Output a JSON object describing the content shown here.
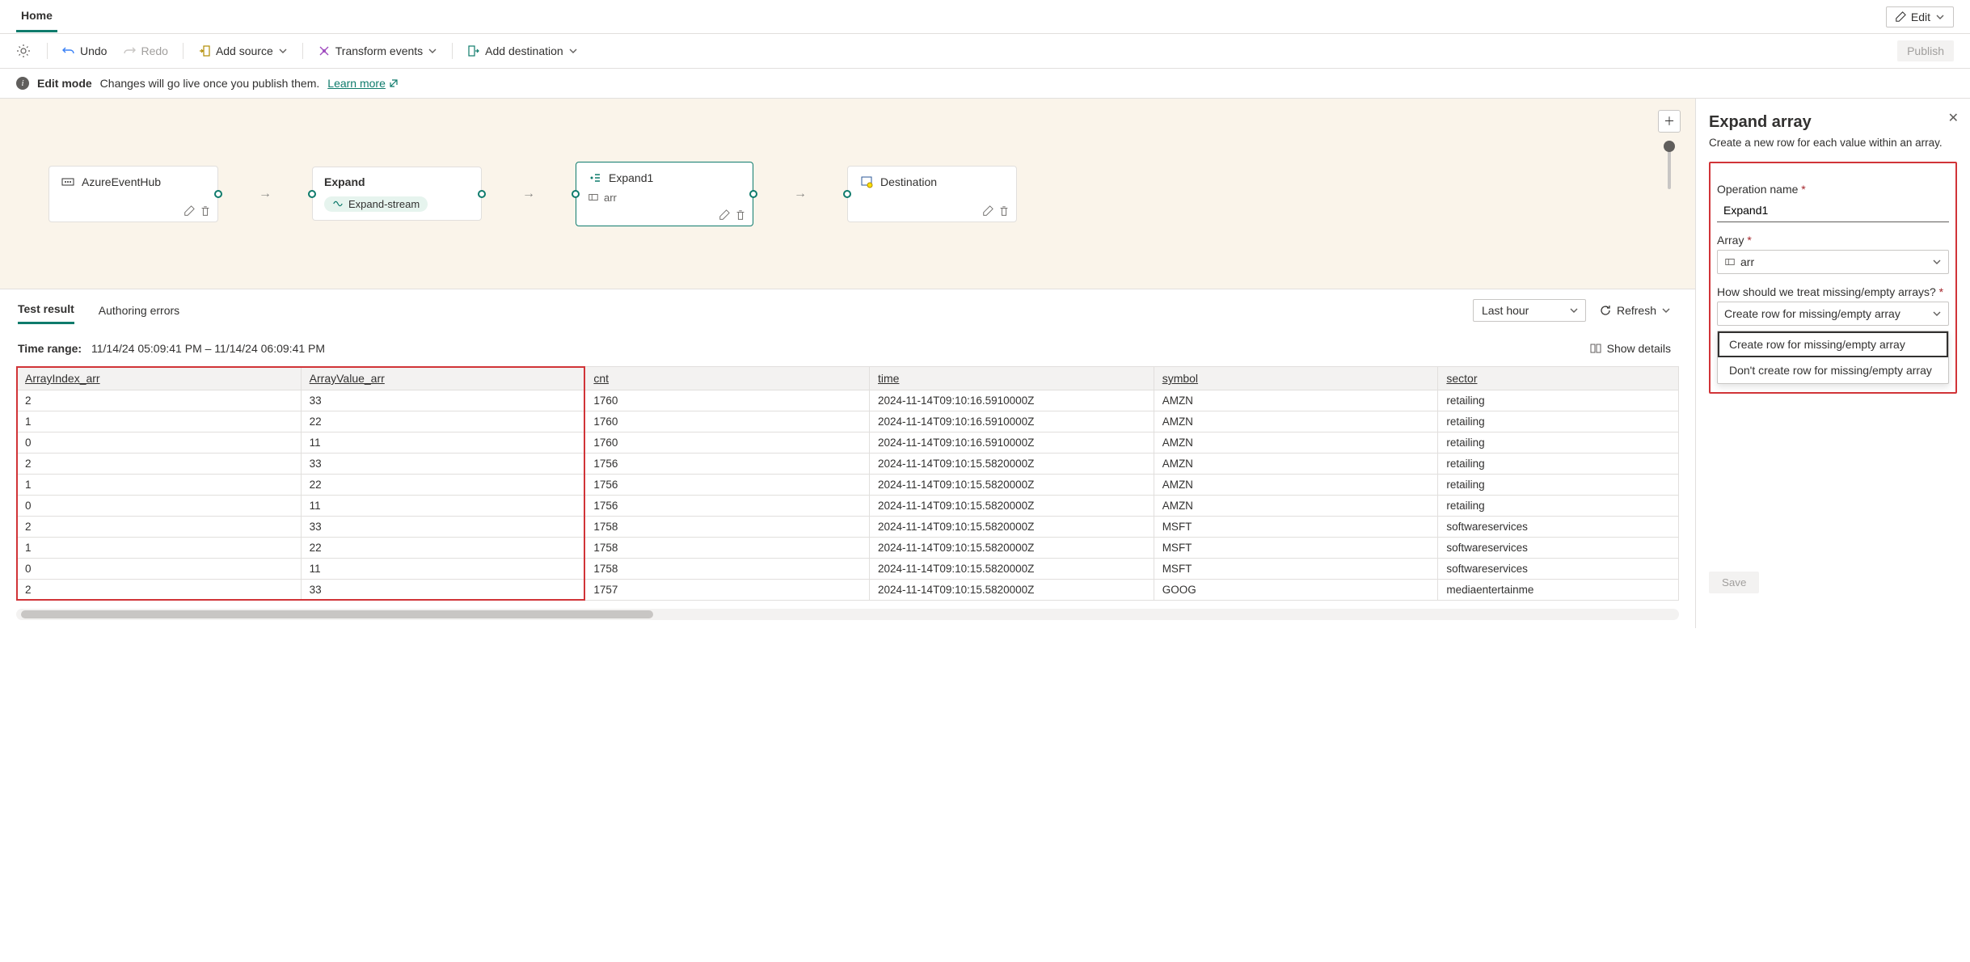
{
  "header": {
    "tab_home": "Home",
    "edit_label": "Edit"
  },
  "toolbar": {
    "undo": "Undo",
    "redo": "Redo",
    "add_source": "Add source",
    "transform": "Transform events",
    "add_dest": "Add destination",
    "publish": "Publish"
  },
  "infobar": {
    "title": "Edit mode",
    "message": "Changes will go live once you publish them.",
    "learn_more": "Learn more"
  },
  "nodes": {
    "source": {
      "title": "AzureEventHub"
    },
    "expand": {
      "title": "Expand",
      "chip": "Expand-stream"
    },
    "expand1": {
      "title": "Expand1",
      "field": "arr"
    },
    "dest": {
      "title": "Destination"
    }
  },
  "bottom": {
    "tab_test": "Test result",
    "tab_errors": "Authoring errors",
    "range_select": "Last hour",
    "refresh": "Refresh",
    "time_label": "Time range:",
    "time_value": "11/14/24 05:09:41 PM – 11/14/24 06:09:41 PM",
    "show_details": "Show details"
  },
  "table": {
    "columns": [
      "ArrayIndex_arr",
      "ArrayValue_arr",
      "cnt",
      "time",
      "symbol",
      "sector"
    ],
    "rows": [
      [
        "2",
        "33",
        "1760",
        "2024-11-14T09:10:16.5910000Z",
        "AMZN",
        "retailing"
      ],
      [
        "1",
        "22",
        "1760",
        "2024-11-14T09:10:16.5910000Z",
        "AMZN",
        "retailing"
      ],
      [
        "0",
        "11",
        "1760",
        "2024-11-14T09:10:16.5910000Z",
        "AMZN",
        "retailing"
      ],
      [
        "2",
        "33",
        "1756",
        "2024-11-14T09:10:15.5820000Z",
        "AMZN",
        "retailing"
      ],
      [
        "1",
        "22",
        "1756",
        "2024-11-14T09:10:15.5820000Z",
        "AMZN",
        "retailing"
      ],
      [
        "0",
        "11",
        "1756",
        "2024-11-14T09:10:15.5820000Z",
        "AMZN",
        "retailing"
      ],
      [
        "2",
        "33",
        "1758",
        "2024-11-14T09:10:15.5820000Z",
        "MSFT",
        "softwareservices"
      ],
      [
        "1",
        "22",
        "1758",
        "2024-11-14T09:10:15.5820000Z",
        "MSFT",
        "softwareservices"
      ],
      [
        "0",
        "11",
        "1758",
        "2024-11-14T09:10:15.5820000Z",
        "MSFT",
        "softwareservices"
      ],
      [
        "2",
        "33",
        "1757",
        "2024-11-14T09:10:15.5820000Z",
        "GOOG",
        "mediaentertainme"
      ]
    ],
    "col_widths": [
      "13%",
      "13%",
      "13%",
      "13%",
      "13%",
      "11%"
    ]
  },
  "panel": {
    "title": "Expand array",
    "desc": "Create a new row for each value within an array.",
    "op_label": "Operation name",
    "op_value": "Expand1",
    "array_label": "Array",
    "array_value": "arr",
    "missing_label": "How should we treat missing/empty arrays?",
    "missing_value": "Create row for missing/empty array",
    "options": [
      "Create row for missing/empty array",
      "Don't create row for missing/empty array"
    ],
    "save": "Save"
  }
}
